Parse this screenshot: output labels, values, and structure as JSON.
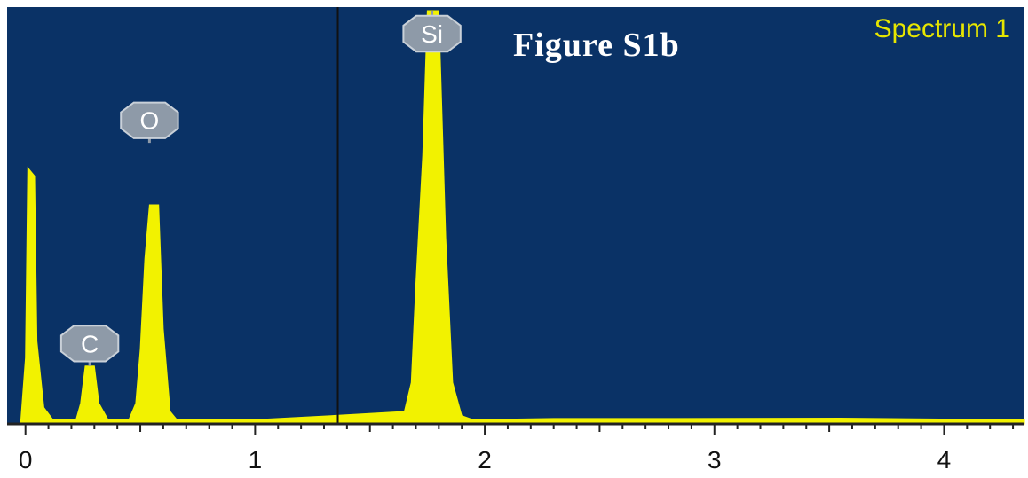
{
  "figure_label": "Figure S1b",
  "spectrum_label": "Spectrum 1",
  "colors": {
    "plot_background": "#0a3266",
    "spectrum_fill": "#f2f200",
    "spectrum_label": "#e6e600",
    "element_badge": "#8e9aa8",
    "cursor_line": "#111111"
  },
  "chart_data": {
    "type": "area",
    "xlim": [
      -0.08,
      4.35
    ],
    "ylim": [
      0,
      100
    ],
    "x_ticks": [
      0,
      1,
      2,
      3,
      4
    ],
    "x_tick_labels": [
      "0",
      "1",
      "2",
      "3",
      "4"
    ],
    "cursor_x": 1.36,
    "grid": false,
    "series": [
      {
        "name": "Spectrum 1",
        "points": [
          [
            -0.02,
            1
          ],
          [
            0.0,
            16
          ],
          [
            0.01,
            62
          ],
          [
            0.04,
            60
          ],
          [
            0.05,
            20
          ],
          [
            0.08,
            4
          ],
          [
            0.12,
            1
          ],
          [
            0.22,
            1
          ],
          [
            0.24,
            5
          ],
          [
            0.26,
            14
          ],
          [
            0.3,
            14
          ],
          [
            0.32,
            5
          ],
          [
            0.36,
            1
          ],
          [
            0.45,
            1
          ],
          [
            0.48,
            5
          ],
          [
            0.5,
            18
          ],
          [
            0.52,
            40
          ],
          [
            0.54,
            53
          ],
          [
            0.58,
            53
          ],
          [
            0.6,
            23
          ],
          [
            0.63,
            3
          ],
          [
            0.66,
            1
          ],
          [
            1.0,
            1
          ],
          [
            1.33,
            2
          ],
          [
            1.65,
            3
          ],
          [
            1.68,
            10
          ],
          [
            1.7,
            34
          ],
          [
            1.73,
            65
          ],
          [
            1.75,
            100
          ],
          [
            1.8,
            100
          ],
          [
            1.83,
            45
          ],
          [
            1.86,
            10
          ],
          [
            1.9,
            2
          ],
          [
            1.95,
            1
          ],
          [
            2.3,
            1.3
          ],
          [
            2.65,
            1.3
          ],
          [
            3.55,
            1.4
          ],
          [
            4.35,
            1
          ]
        ]
      }
    ],
    "peak_labels": [
      {
        "element": "C",
        "x": 0.28,
        "y": 14
      },
      {
        "element": "O",
        "x": 0.54,
        "y": 68
      },
      {
        "element": "Si",
        "x": 1.77,
        "y": 100
      }
    ]
  }
}
